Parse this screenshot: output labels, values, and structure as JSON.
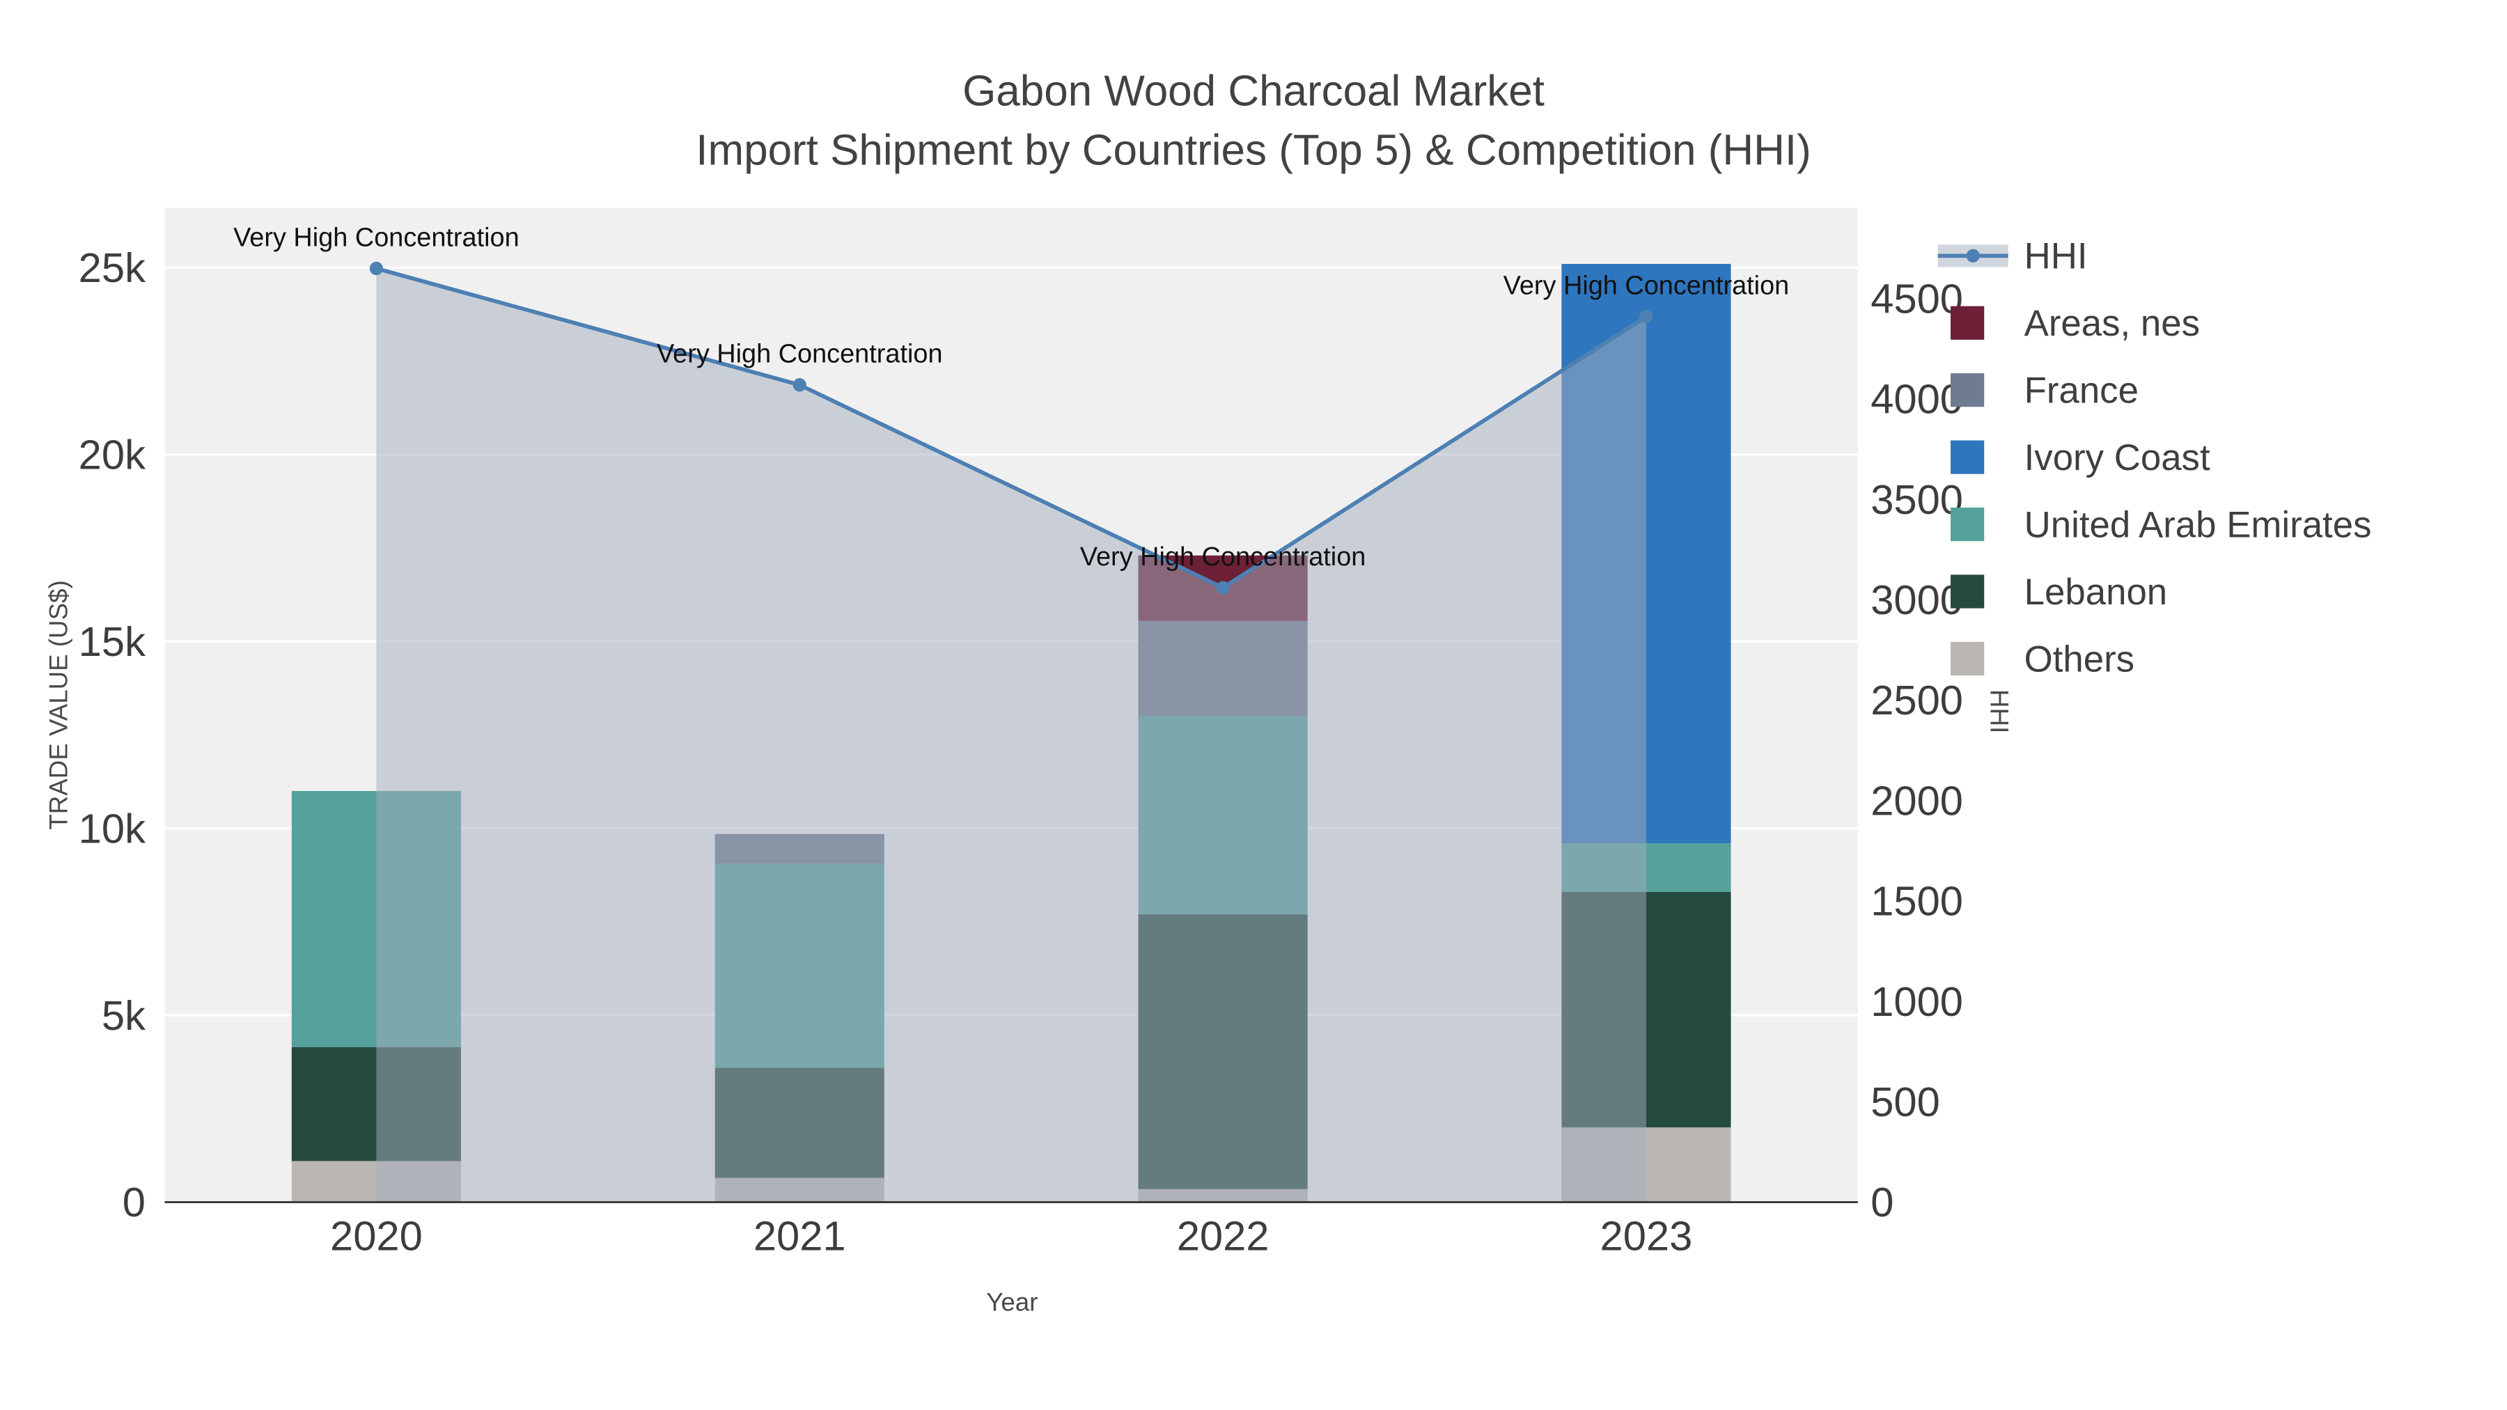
{
  "chart_data": {
    "type": "bar",
    "variant": "stacked-bars-with-line-area-overlay",
    "title": "Gabon Wood Charcoal Market",
    "subtitle": "Import Shipment by Countries (Top 5) & Competition (HHI)",
    "xlabel": "Year",
    "ylabel": "TRADE VALUE (US$)",
    "ylabel_right": "HHI",
    "categories": [
      "2020",
      "2021",
      "2022",
      "2023"
    ],
    "series": [
      {
        "name": "Areas, nes",
        "color": "#6d2036",
        "values": [
          0,
          0,
          1750,
          0
        ]
      },
      {
        "name": "France",
        "color": "#6e7b91",
        "values": [
          0,
          800,
          2550,
          0
        ]
      },
      {
        "name": "Ivory Coast",
        "color": "#2e76be",
        "values": [
          0,
          0,
          0,
          15500
        ]
      },
      {
        "name": "United Arab Emirates",
        "color": "#55a29c",
        "values": [
          6850,
          5450,
          5300,
          1300
        ]
      },
      {
        "name": "Lebanon",
        "color": "#244a40",
        "values": [
          3050,
          2950,
          7350,
          6300
        ]
      },
      {
        "name": "Others",
        "color": "#bab6b2",
        "values": [
          1100,
          650,
          350,
          2000
        ]
      }
    ],
    "totals": [
      11000,
      9850,
      17300,
      25100
    ],
    "line": {
      "name": "HHI",
      "color": "#4d80b3",
      "fill_color": "rgba(164,173,190,0.5)",
      "axis": "right",
      "values": [
        4650,
        4070,
        3060,
        4410
      ]
    },
    "annotations": [
      {
        "text": "Very High Concentration",
        "category": "2020"
      },
      {
        "text": "Very High Concentration",
        "category": "2021"
      },
      {
        "text": "Very High Concentration",
        "category": "2022"
      },
      {
        "text": "Very High Concentration",
        "category": "2023"
      }
    ],
    "axes": {
      "left": {
        "ticks": [
          0,
          5000,
          10000,
          15000,
          20000,
          25000
        ],
        "tick_labels": [
          "0",
          "5k",
          "10k",
          "15k",
          "20k",
          "25k"
        ],
        "range": [
          0,
          26600
        ]
      },
      "right": {
        "ticks": [
          0,
          500,
          1000,
          1500,
          2000,
          2500,
          3000,
          3500,
          4000,
          4500
        ],
        "tick_labels": [
          "0",
          "500",
          "1000",
          "1500",
          "2000",
          "2500",
          "3000",
          "3500",
          "4000",
          "4500"
        ],
        "range": [
          0,
          4952
        ]
      }
    },
    "legend": {
      "position": "right",
      "entries": [
        "HHI",
        "Areas, nes",
        "France",
        "Ivory Coast",
        "United Arab Emirates",
        "Lebanon",
        "Others"
      ]
    },
    "plot_bg": "#f0f0f0",
    "grid_color": "#ffffff",
    "axis_line_color": "#2f2f2f",
    "grid": true
  }
}
